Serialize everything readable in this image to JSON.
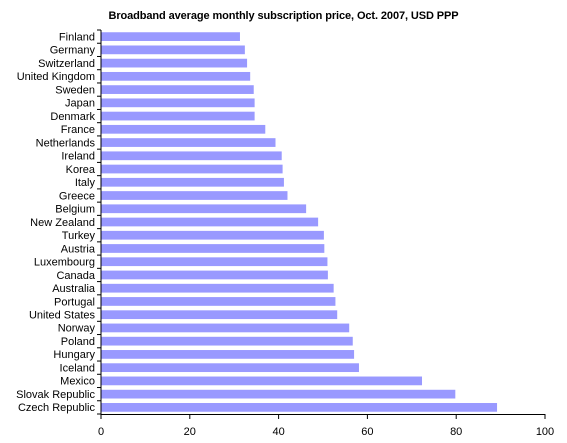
{
  "chart_data": {
    "type": "bar",
    "orientation": "horizontal",
    "title": "Broadband average monthly subscription price, Oct. 2007, USD PPP",
    "xlabel": "",
    "ylabel": "",
    "xlim": [
      0,
      100
    ],
    "x_ticks": [
      "0",
      "20",
      "40",
      "60",
      "80",
      "100"
    ],
    "grid": false,
    "legend": "none",
    "bar_color": "#9999FF",
    "categories": [
      "Finland",
      "Germany",
      "Switzerland",
      "United Kingdom",
      "Sweden",
      "Japan",
      "Denmark",
      "France",
      "Netherlands",
      "Ireland",
      "Korea",
      "Italy",
      "Greece",
      "Belgium",
      "New Zealand",
      "Turkey",
      "Austria",
      "Luxembourg",
      "Canada",
      "Australia",
      "Portugal",
      "United States",
      "Norway",
      "Poland",
      "Hungary",
      "Iceland",
      "Mexico",
      "Slovak Republic",
      "Czech Republic"
    ],
    "values": [
      31.3,
      32.4,
      32.9,
      33.6,
      34.4,
      34.6,
      34.6,
      37.0,
      39.3,
      40.7,
      40.9,
      41.2,
      42.0,
      46.2,
      48.9,
      50.2,
      50.3,
      51.0,
      51.1,
      52.4,
      52.8,
      53.2,
      55.9,
      56.7,
      57.0,
      58.1,
      72.3,
      79.8,
      89.2
    ]
  }
}
